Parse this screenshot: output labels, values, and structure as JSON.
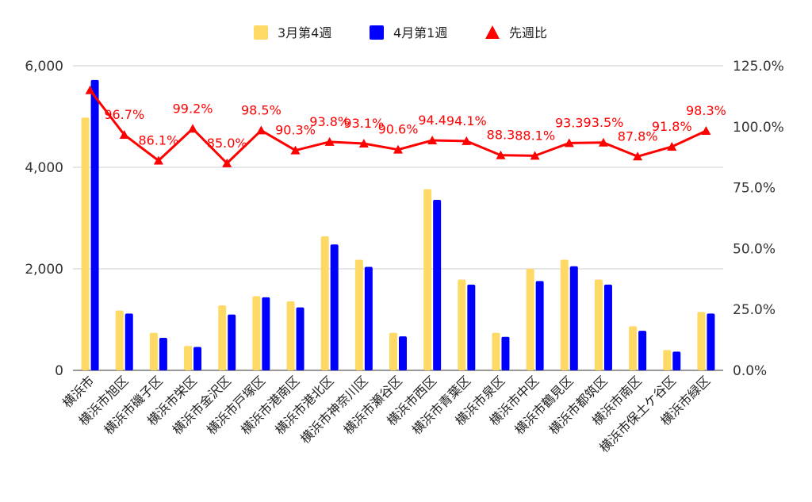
{
  "chart_data": {
    "type": "bar",
    "categories": [
      "横浜市",
      "横浜市旭区",
      "横浜市磯子区",
      "横浜市栄区",
      "横浜市金沢区",
      "横浜市戸塚区",
      "横浜市港南区",
      "横浜市港北区",
      "横浜市神奈川区",
      "横浜市瀬谷区",
      "横浜市西区",
      "横浜市青葉区",
      "横浜市泉区",
      "横浜市中区",
      "横浜市鶴見区",
      "横浜市都筑区",
      "横浜市南区",
      "横浜市保土ケ谷区",
      "横浜市緑区"
    ],
    "series": [
      {
        "name": "3月第4週",
        "kind": "bar",
        "axis": "left",
        "color": "#ffd966",
        "values": [
          4980,
          1180,
          740,
          480,
          1280,
          1460,
          1360,
          2640,
          2180,
          740,
          3570,
          1790,
          740,
          2000,
          2180,
          1790,
          870,
          400,
          1150
        ]
      },
      {
        "name": "4月第1週",
        "kind": "bar",
        "axis": "left",
        "color": "#0000ff",
        "values": [
          5720,
          1120,
          640,
          460,
          1100,
          1440,
          1240,
          2480,
          2040,
          670,
          3360,
          1690,
          660,
          1760,
          2050,
          1690,
          780,
          370,
          1120
        ]
      },
      {
        "name": "先週比",
        "kind": "line",
        "axis": "right",
        "color": "#ff0000",
        "marker": "triangle",
        "values": [
          115.0,
          96.7,
          86.1,
          99.2,
          85.0,
          98.5,
          90.3,
          93.8,
          93.1,
          90.6,
          94.4,
          94.1,
          88.3,
          88.1,
          93.3,
          93.5,
          87.8,
          91.8,
          98.3
        ],
        "labels": [
          "",
          "96.7%",
          "86.1%",
          "99.2%",
          "85.0%",
          "98.5%",
          "90.3%",
          "93.8%",
          "93.1%",
          "90.6%",
          "94.4",
          "94.1%",
          "88.3",
          "88.1%",
          "93.3",
          "93.5%",
          "87.8%",
          "91.8%",
          "98.3%"
        ]
      }
    ],
    "y_left": {
      "ylim": [
        0,
        6000
      ],
      "ticks": [
        0,
        2000,
        4000,
        6000
      ],
      "tick_labels": [
        "0",
        "2,000",
        "4,000",
        "6,000"
      ]
    },
    "y_right": {
      "ylim": [
        0,
        125
      ],
      "ticks": [
        0,
        25,
        50,
        75,
        100,
        125
      ],
      "tick_labels": [
        "0.0%",
        "25.0%",
        "50.0%",
        "75.0%",
        "100.0%",
        "125.0%"
      ]
    },
    "legend": {
      "position": "top-center"
    },
    "grid": true,
    "title": "",
    "xlabel": "",
    "ylabel": ""
  }
}
